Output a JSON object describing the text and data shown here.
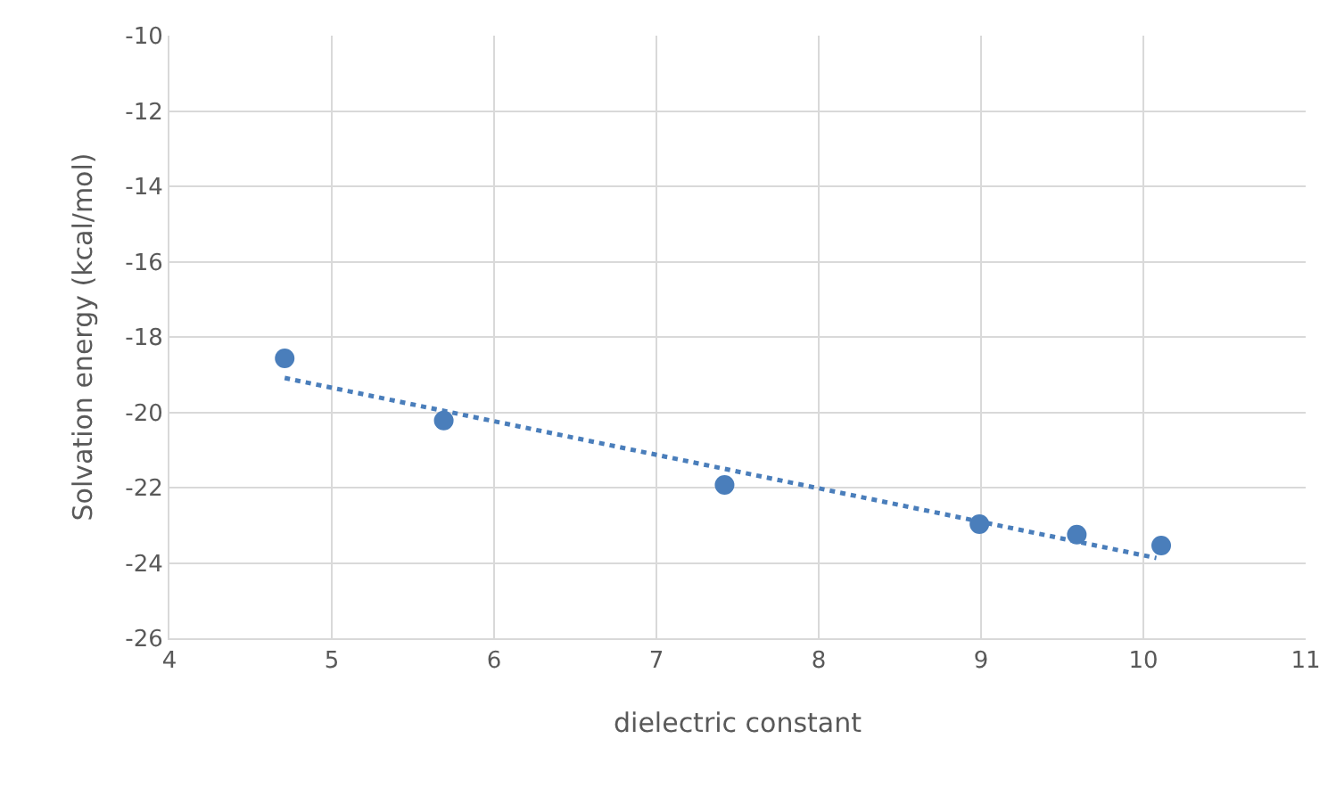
{
  "chart_data": {
    "type": "scatter",
    "xlabel": "dielectric constant",
    "ylabel": "Solvation energy (kcal/mol)",
    "xlim": [
      4,
      11
    ],
    "xticks": [
      4,
      5,
      6,
      7,
      8,
      9,
      10,
      11
    ],
    "ylim": [
      -26,
      -10
    ],
    "yticks": [
      -26,
      -24,
      -22,
      -20,
      -18,
      -16,
      -14,
      -12,
      -10
    ],
    "grid": true,
    "series": [
      {
        "marker": "circle",
        "color": "#4a7ebb",
        "x": [
          4.71,
          5.69,
          7.42,
          8.99,
          9.59,
          10.11
        ],
        "values": [
          -18.57,
          -20.22,
          -21.93,
          -22.97,
          -23.25,
          -23.54
        ]
      },
      {
        "type": "line",
        "marker": "none",
        "color": "#4a7ebb",
        "line_style": "dotted",
        "x": [
          4.71,
          10.08
        ],
        "values": [
          -19.09,
          -23.87
        ]
      }
    ]
  }
}
